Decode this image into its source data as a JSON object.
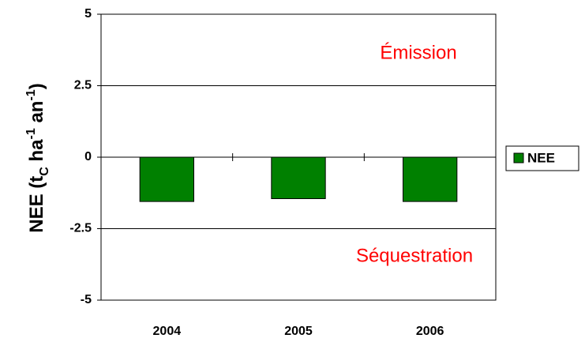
{
  "chart_data": {
    "type": "bar",
    "ylabel": [
      {
        "text": "NEE (t"
      },
      {
        "text": "C",
        "sub": true
      },
      {
        "text": " ha"
      },
      {
        "text": "-1",
        "sup": true
      },
      {
        "text": " an"
      },
      {
        "text": "-1",
        "sup": true
      },
      {
        "text": ")"
      }
    ],
    "categories": [
      "2004",
      "2005",
      "2006"
    ],
    "series": [
      {
        "name": "NEE",
        "color": "#008000",
        "values": [
          -1.55,
          -1.45,
          -1.55
        ]
      }
    ],
    "ylim": [
      -5,
      5
    ],
    "yticks": [
      -5,
      -2.5,
      0,
      2.5,
      5
    ],
    "grid": true,
    "legend": "right",
    "annotations": [
      {
        "text": "Émission",
        "color": "#ff0000"
      },
      {
        "text": "Séquestration",
        "color": "#ff0000"
      }
    ]
  }
}
